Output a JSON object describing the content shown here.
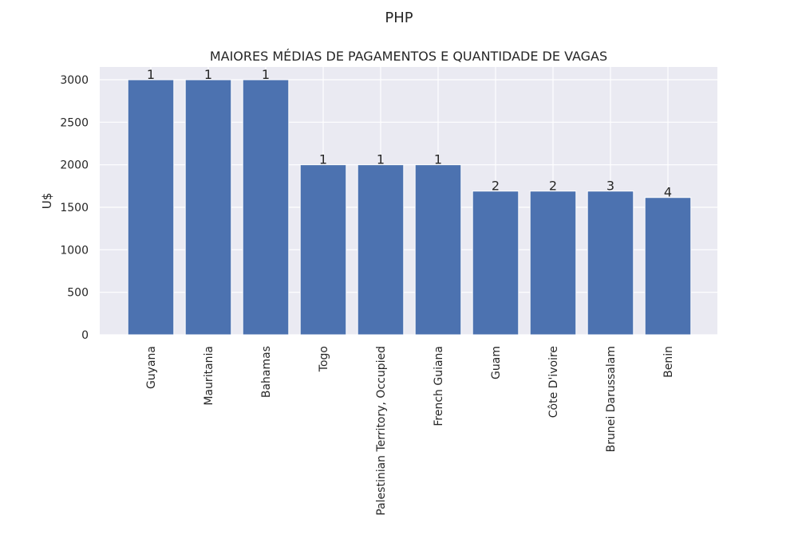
{
  "figure": {
    "suptitle": "PHP"
  },
  "chart_data": {
    "type": "bar",
    "title": "MAIORES MÉDIAS DE PAGAMENTOS E QUANTIDADE DE VAGAS",
    "xlabel": "",
    "ylabel": "U$",
    "categories": [
      "Guyana",
      "Mauritania",
      "Bahamas",
      "Togo",
      "Palestinian Territory, Occupied",
      "French Guiana",
      "Guam",
      "Côte D'ivoire",
      "Brunei Darussalam",
      "Benin"
    ],
    "values": [
      3000,
      3000,
      3000,
      2000,
      2000,
      2000,
      1690,
      1690,
      1690,
      1615
    ],
    "data_labels": [
      "1",
      "1",
      "1",
      "1",
      "1",
      "1",
      "2",
      "2",
      "3",
      "4"
    ],
    "ylim": [
      0,
      3150
    ],
    "yticks": [
      0,
      500,
      1000,
      1500,
      2000,
      2500,
      3000
    ],
    "grid": true,
    "colors": {
      "bar": "#4c72b0",
      "background": "#eaeaf2",
      "grid": "#ffffff"
    }
  }
}
